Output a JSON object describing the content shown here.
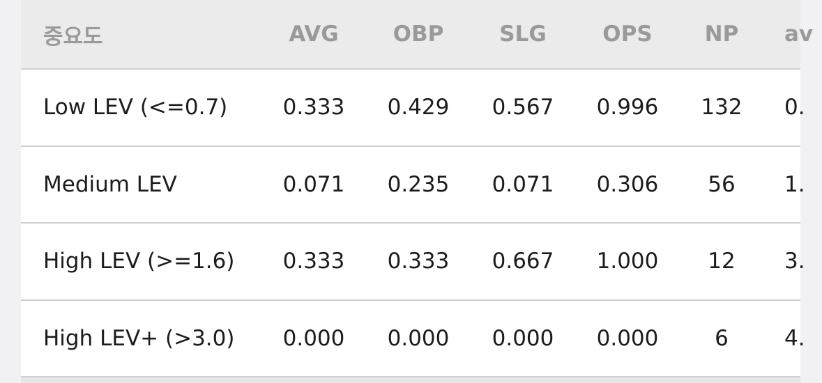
{
  "table": {
    "header": [
      "중요도",
      "AVG",
      "OBP",
      "SLG",
      "OPS",
      "NP",
      "av"
    ],
    "rows": [
      [
        "Low LEV (<=0.7)",
        "0.333",
        "0.429",
        "0.567",
        "0.996",
        "132",
        "0."
      ],
      [
        "Medium LEV",
        "0.071",
        "0.235",
        "0.071",
        "0.306",
        "56",
        "1."
      ],
      [
        "High LEV (>=1.6)",
        "0.333",
        "0.333",
        "0.667",
        "1.000",
        "12",
        "3."
      ],
      [
        "High LEV+ (>3.0)",
        "0.000",
        "0.000",
        "0.000",
        "0.000",
        "6",
        "4."
      ]
    ]
  }
}
